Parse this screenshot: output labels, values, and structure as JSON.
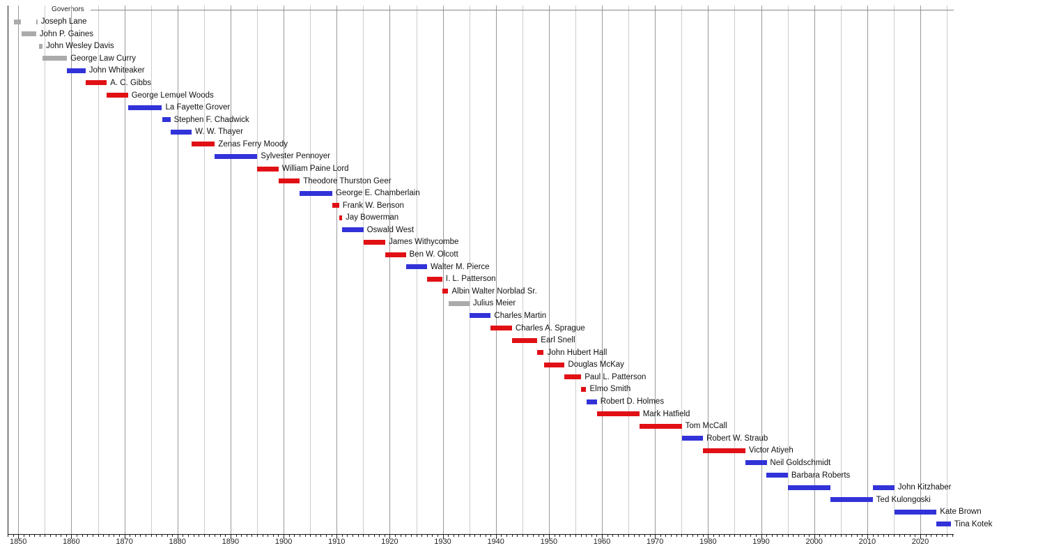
{
  "chart_data": {
    "type": "timeline",
    "title": "Governors",
    "axis": {
      "x_min": 1848,
      "x_max": 2026.3,
      "tick_labels": [
        "1850",
        "1860",
        "1870",
        "1880",
        "1890",
        "1900",
        "1910",
        "1920",
        "1930",
        "1940",
        "1950",
        "1960",
        "1970",
        "1980",
        "1990",
        "2000",
        "2010",
        "2020"
      ],
      "tick_years": [
        1850,
        1860,
        1870,
        1880,
        1890,
        1900,
        1910,
        1920,
        1930,
        1940,
        1950,
        1960,
        1970,
        1980,
        1990,
        2000,
        2010,
        2020
      ],
      "gridline_step_years": 5,
      "minor_tick_step_years": 1,
      "grid_on": true
    },
    "colors": {
      "democratic": "#3232d9",
      "republican": "#e01015",
      "other": "#ababab",
      "major_gridline": "#999999",
      "minor_gridline": "#cccccc",
      "axis": "#1a1a1a"
    },
    "rows": [
      {
        "name": "Joseph Lane",
        "party": "other",
        "terms": [
          [
            1849.17,
            1850.46
          ],
          [
            1853.37,
            1853.6
          ]
        ]
      },
      {
        "name": "John P. Gaines",
        "party": "other",
        "terms": [
          [
            1850.63,
            1853.37
          ]
        ]
      },
      {
        "name": "John Wesley Davis",
        "party": "other",
        "terms": [
          [
            1853.92,
            1854.58
          ]
        ]
      },
      {
        "name": "George Law Curry",
        "party": "other",
        "terms": [
          [
            1854.58,
            1859.17
          ]
        ]
      },
      {
        "name": "John Whiteaker",
        "party": "democratic",
        "terms": [
          [
            1859.17,
            1862.67
          ]
        ]
      },
      {
        "name": "A. C. Gibbs",
        "party": "republican",
        "terms": [
          [
            1862.67,
            1866.67
          ]
        ]
      },
      {
        "name": "George Lemuel Woods",
        "party": "republican",
        "terms": [
          [
            1866.67,
            1870.67
          ]
        ]
      },
      {
        "name": "La Fayette Grover",
        "party": "democratic",
        "terms": [
          [
            1870.67,
            1877.08
          ]
        ]
      },
      {
        "name": "Stephen F. Chadwick",
        "party": "democratic",
        "terms": [
          [
            1877.08,
            1878.67
          ]
        ]
      },
      {
        "name": "W. W. Thayer",
        "party": "democratic",
        "terms": [
          [
            1878.67,
            1882.67
          ]
        ]
      },
      {
        "name": "Zenas Ferry Moody",
        "party": "republican",
        "terms": [
          [
            1882.67,
            1887.04
          ]
        ]
      },
      {
        "name": "Sylvester Pennoyer",
        "party": "democratic",
        "terms": [
          [
            1887.04,
            1895.04
          ]
        ]
      },
      {
        "name": "William Paine Lord",
        "party": "republican",
        "terms": [
          [
            1895.04,
            1899.04
          ]
        ]
      },
      {
        "name": "Theodore Thurston Geer",
        "party": "republican",
        "terms": [
          [
            1899.04,
            1903.04
          ]
        ]
      },
      {
        "name": "George E. Chamberlain",
        "party": "democratic",
        "terms": [
          [
            1903.04,
            1909.17
          ]
        ]
      },
      {
        "name": "Frank W. Benson",
        "party": "republican",
        "terms": [
          [
            1909.17,
            1910.46
          ]
        ]
      },
      {
        "name": "Jay Bowerman",
        "party": "republican",
        "terms": [
          [
            1910.46,
            1911.04
          ]
        ]
      },
      {
        "name": "Oswald West",
        "party": "democratic",
        "terms": [
          [
            1911.04,
            1915.04
          ]
        ]
      },
      {
        "name": "James Withycombe",
        "party": "republican",
        "terms": [
          [
            1915.04,
            1919.17
          ]
        ]
      },
      {
        "name": "Ben W. Olcott",
        "party": "republican",
        "terms": [
          [
            1919.17,
            1923.04
          ]
        ]
      },
      {
        "name": "Walter M. Pierce",
        "party": "democratic",
        "terms": [
          [
            1923.04,
            1927.04
          ]
        ]
      },
      {
        "name": "I. L. Patterson",
        "party": "republican",
        "terms": [
          [
            1927.04,
            1929.92
          ]
        ]
      },
      {
        "name": "Albin Walter Norblad Sr.",
        "party": "republican",
        "terms": [
          [
            1929.92,
            1931.04
          ]
        ]
      },
      {
        "name": "Julius Meier",
        "party": "other",
        "terms": [
          [
            1931.04,
            1935.04
          ]
        ]
      },
      {
        "name": "Charles Martin",
        "party": "democratic",
        "terms": [
          [
            1935.04,
            1939.04
          ]
        ]
      },
      {
        "name": "Charles A. Sprague",
        "party": "republican",
        "terms": [
          [
            1939.04,
            1943.04
          ]
        ]
      },
      {
        "name": "Earl Snell",
        "party": "republican",
        "terms": [
          [
            1943.04,
            1947.83
          ]
        ]
      },
      {
        "name": "John Hubert Hall",
        "party": "republican",
        "terms": [
          [
            1947.83,
            1949.04
          ]
        ]
      },
      {
        "name": "Douglas McKay",
        "party": "republican",
        "terms": [
          [
            1949.04,
            1952.96
          ]
        ]
      },
      {
        "name": "Paul L. Patterson",
        "party": "republican",
        "terms": [
          [
            1952.96,
            1956.08
          ]
        ]
      },
      {
        "name": "Elmo Smith",
        "party": "republican",
        "terms": [
          [
            1956.08,
            1957.04
          ]
        ]
      },
      {
        "name": "Robert D. Holmes",
        "party": "democratic",
        "terms": [
          [
            1957.04,
            1959.04
          ]
        ]
      },
      {
        "name": "Mark Hatfield",
        "party": "republican",
        "terms": [
          [
            1959.04,
            1967.04
          ]
        ]
      },
      {
        "name": "Tom McCall",
        "party": "republican",
        "terms": [
          [
            1967.04,
            1975.04
          ]
        ]
      },
      {
        "name": "Robert W. Straub",
        "party": "democratic",
        "terms": [
          [
            1975.04,
            1979.04
          ]
        ]
      },
      {
        "name": "Victor Atiyeh",
        "party": "republican",
        "terms": [
          [
            1979.04,
            1987.04
          ]
        ]
      },
      {
        "name": "Neil Goldschmidt",
        "party": "democratic",
        "terms": [
          [
            1987.04,
            1991.04
          ]
        ]
      },
      {
        "name": "Barbara Roberts",
        "party": "democratic",
        "terms": [
          [
            1991.04,
            1995.04
          ]
        ]
      },
      {
        "name": "John Kitzhaber",
        "party": "democratic",
        "terms": [
          [
            1995.04,
            2003.04
          ],
          [
            2011.04,
            2015.12
          ]
        ]
      },
      {
        "name": "Ted Kulongoski",
        "party": "democratic",
        "terms": [
          [
            2003.04,
            2011.04
          ]
        ]
      },
      {
        "name": "Kate Brown",
        "party": "democratic",
        "terms": [
          [
            2015.12,
            2023.04
          ]
        ]
      },
      {
        "name": "Tina Kotek",
        "party": "democratic",
        "terms": [
          [
            2023.04,
            2025.75
          ]
        ]
      }
    ]
  }
}
